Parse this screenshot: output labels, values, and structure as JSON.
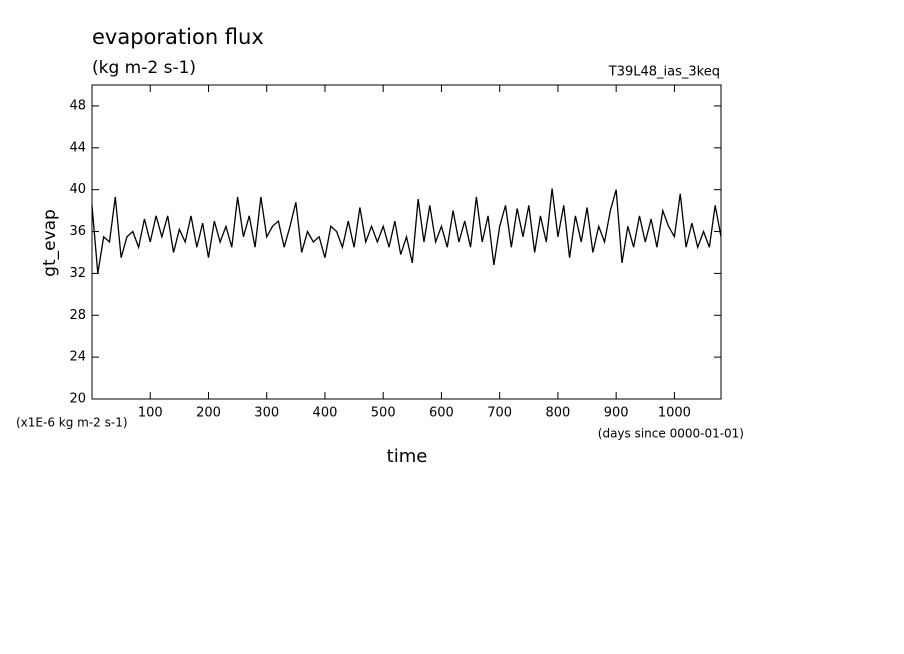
{
  "chart_data": {
    "type": "line",
    "title": "evaporation flux",
    "subtitle": "(kg m-2 s-1)",
    "annotation": "T39L48_ias_3keq",
    "y_label": "gt_evap",
    "y_unit_label": "(x1E-6 kg m-2 s-1)",
    "x_unit_label": "(days since 0000-01-01)",
    "x_label": "time",
    "xlim": [
      0,
      1080
    ],
    "xticks": [
      100,
      200,
      300,
      400,
      500,
      600,
      700,
      800,
      900,
      1000
    ],
    "ylim": [
      20,
      50
    ],
    "yticks": [
      20,
      24,
      28,
      32,
      36,
      40,
      44,
      48
    ],
    "x": [
      0,
      10,
      20,
      30,
      40,
      50,
      60,
      70,
      80,
      90,
      100,
      110,
      120,
      130,
      140,
      150,
      160,
      170,
      180,
      190,
      200,
      210,
      220,
      230,
      240,
      250,
      260,
      270,
      280,
      290,
      300,
      310,
      320,
      330,
      340,
      350,
      360,
      370,
      380,
      390,
      400,
      410,
      420,
      430,
      440,
      450,
      460,
      470,
      480,
      490,
      500,
      510,
      520,
      530,
      540,
      550,
      560,
      570,
      580,
      590,
      600,
      610,
      620,
      630,
      640,
      650,
      660,
      670,
      680,
      690,
      700,
      710,
      720,
      730,
      740,
      750,
      760,
      770,
      780,
      790,
      800,
      810,
      820,
      830,
      840,
      850,
      860,
      870,
      880,
      890,
      900,
      910,
      920,
      930,
      940,
      950,
      960,
      970,
      980,
      990,
      1000,
      1010,
      1020,
      1030,
      1040,
      1050,
      1060,
      1070,
      1080
    ],
    "series": [
      {
        "color": "#000000",
        "values": [
          38.5,
          32,
          35.5,
          35,
          39.3,
          33.5,
          35.5,
          36,
          34.5,
          37.2,
          35,
          37.5,
          35.5,
          37.5,
          34,
          36.2,
          35,
          37.5,
          34.5,
          36.8,
          33.5,
          37,
          35,
          36.5,
          34.5,
          39.3,
          35.5,
          37.5,
          34.5,
          39.3,
          35.5,
          36.5,
          37,
          34.5,
          36.5,
          38.8,
          34,
          36,
          35,
          35.5,
          33.5,
          36.5,
          36,
          34.5,
          37,
          34.5,
          38.3,
          35,
          36.5,
          35,
          36.5,
          34.5,
          37,
          33.8,
          35.5,
          33,
          39.1,
          35,
          38.5,
          35,
          36.5,
          34.5,
          38,
          35,
          37,
          34.5,
          39.3,
          35,
          37.5,
          32.8,
          36.5,
          38.5,
          34.5,
          38.2,
          35.5,
          38.5,
          34,
          37.5,
          35,
          40.1,
          35.5,
          38.5,
          33.5,
          37.5,
          35,
          38.3,
          34,
          36.5,
          35,
          38,
          40,
          33,
          36.5,
          34.5,
          37.5,
          35,
          37.2,
          34.5,
          38,
          36.5,
          35.5,
          39.6,
          34.5,
          36.8,
          34.5,
          36,
          34.5,
          38.5,
          35.5
        ]
      }
    ]
  }
}
